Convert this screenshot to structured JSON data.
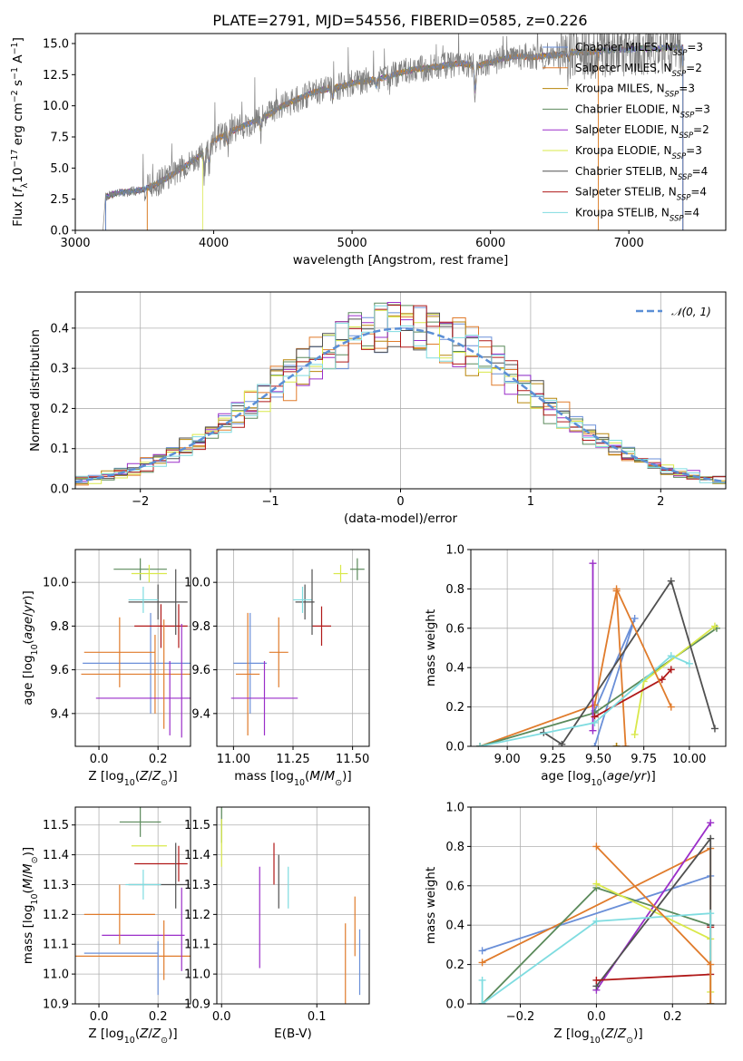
{
  "figure_title": "PLATE=2791, MJD=54556, FIBERID=0585, z=0.226",
  "series_names": [
    "Chabrier MILES, N$_{SSP}$=3",
    "Salpeter MILES, N$_{SSP}$=2",
    "Kroupa MILES, N$_{SSP}$=3",
    "Chabrier ELODIE, N$_{SSP}$=3",
    "Salpeter ELODIE, N$_{SSP}$=2",
    "Kroupa ELODIE, N$_{SSP}$=3",
    "Chabrier STELIB, N$_{SSP}$=4",
    "Salpeter STELIB, N$_{SSP}$=4",
    "Kroupa STELIB, N$_{SSP}$=4"
  ],
  "series_labels": [
    {
      "base": "Chabrier MILES, N",
      "sub": "SSP",
      "tail": "=3"
    },
    {
      "base": "Salpeter MILES, N",
      "sub": "SSP",
      "tail": "=2"
    },
    {
      "base": "Kroupa MILES, N",
      "sub": "SSP",
      "tail": "=3"
    },
    {
      "base": "Chabrier ELODIE, N",
      "sub": "SSP",
      "tail": "=3"
    },
    {
      "base": "Salpeter ELODIE, N",
      "sub": "SSP",
      "tail": "=2"
    },
    {
      "base": "Kroupa ELODIE, N",
      "sub": "SSP",
      "tail": "=3"
    },
    {
      "base": "Chabrier STELIB, N",
      "sub": "SSP",
      "tail": "=4"
    },
    {
      "base": "Salpeter STELIB, N",
      "sub": "SSP",
      "tail": "=4"
    },
    {
      "base": "Kroupa STELIB, N",
      "sub": "SSP",
      "tail": "=4"
    }
  ],
  "series_colors": [
    "#6a8fd8",
    "#e07b2b",
    "#b8860b",
    "#5b8a5b",
    "#9b2fc9",
    "#d9e84a",
    "#505050",
    "#b01818",
    "#7fdce0"
  ],
  "observed_color": "#808080",
  "chart_data": [
    {
      "type": "line",
      "xlabel": "wavelength [Angstrom, rest frame]",
      "ylabel": "Flux [f_λ 10^-17 erg cm^-2 s^-1 A^-1]",
      "xlim": [
        3000,
        7700
      ],
      "ylim": [
        0,
        15.8
      ],
      "xticks": [
        3000,
        4000,
        5000,
        6000,
        7000
      ],
      "yticks": [
        0.0,
        2.5,
        5.0,
        7.5,
        10.0,
        12.5,
        15.0
      ],
      "grid": false,
      "legend": "top-right",
      "observed": {
        "x": [
          3200,
          3220,
          3300,
          3400,
          3500,
          3600,
          3700,
          3800,
          3900,
          4000,
          4100,
          4200,
          4300,
          4400,
          4500,
          4600,
          4700,
          4800,
          4900,
          5000,
          5100,
          5200,
          5300,
          5400,
          5500,
          5600,
          5700,
          5800,
          5900,
          6000,
          6100,
          6200,
          6300,
          6400,
          6500,
          6600,
          6700,
          6800,
          6900,
          7000,
          7100,
          7200,
          7300,
          7400
        ],
        "y": [
          0.0,
          2.7,
          3.0,
          3.1,
          3.3,
          3.8,
          4.5,
          5.2,
          6.0,
          7.2,
          7.8,
          8.3,
          8.8,
          9.3,
          10.0,
          10.5,
          11.0,
          11.3,
          11.5,
          11.8,
          12.0,
          12.2,
          12.5,
          12.8,
          13.0,
          13.1,
          13.3,
          13.4,
          13.2,
          13.5,
          13.8,
          14.0,
          13.9,
          14.0,
          14.1,
          14.3,
          14.3,
          14.4,
          14.5,
          14.5,
          14.6,
          14.6,
          14.7,
          14.7
        ]
      },
      "model_start": [
        3220,
        3520,
        3520,
        3220,
        3220,
        3920,
        3220,
        3220,
        3220
      ],
      "model_end": [
        7390,
        6780,
        6780,
        7390,
        7390,
        7390,
        7390,
        7390,
        7390
      ]
    },
    {
      "type": "histogram",
      "xlabel": "(data-model)/error",
      "ylabel": "Normed distribution",
      "xlim": [
        -2.5,
        2.5
      ],
      "ylim": [
        0,
        0.49
      ],
      "xticks": [
        -2,
        -1,
        0,
        1,
        2
      ],
      "yticks": [
        0.0,
        0.1,
        0.2,
        0.3,
        0.4
      ],
      "grid": true,
      "legend": "top-right",
      "reference": {
        "name": "N(0, 1)",
        "name_parts": [
          "𝒩(0, 1)"
        ],
        "mean": 0,
        "sigma": 1
      },
      "bins": {
        "start": -2.5,
        "width": 0.1,
        "count": 50
      }
    },
    {
      "type": "scatter",
      "xlabel": "Z [log10(Z/Z☉)]",
      "ylabel": "age [log10(age/yr)]",
      "xlim": [
        -0.08,
        0.31
      ],
      "ylim": [
        9.25,
        10.15
      ],
      "xticks": [
        0.0,
        0.2
      ],
      "yticks": [
        9.4,
        9.6,
        9.8,
        10.0
      ],
      "grid": true,
      "points": [
        {
          "x": 0.175,
          "y": 9.63,
          "xerr": 0.23,
          "yerr": 0.23
        },
        {
          "x": 0.19,
          "y": 9.58,
          "xerr": 0.25,
          "yerr": 0.18
        },
        {
          "x": 0.15,
          "y": 10.0,
          "xerr": 0.0,
          "yerr": 0.0
        },
        {
          "x": 0.14,
          "y": 10.06,
          "xerr": 0.09,
          "yerr": 0.05
        },
        {
          "x": 0.24,
          "y": 9.47,
          "xerr": 0.25,
          "yerr": 0.17
        },
        {
          "x": 0.17,
          "y": 10.04,
          "xerr": 0.06,
          "yerr": 0.04
        },
        {
          "x": 0.2,
          "y": 9.91,
          "xerr": 0.1,
          "yerr": 0.08
        },
        {
          "x": 0.21,
          "y": 9.8,
          "xerr": 0.09,
          "yerr": 0.1
        },
        {
          "x": 0.15,
          "y": 9.92,
          "xerr": 0.05,
          "yerr": 0.06
        }
      ],
      "extra_points": [
        {
          "color_index": 1,
          "x": 0.22,
          "y": 9.58,
          "yerr": 0.25
        },
        {
          "color_index": 1,
          "x": 0.07,
          "y": 9.68,
          "xerr": 0.12,
          "yerr": 0.16
        },
        {
          "color_index": 6,
          "x": 0.26,
          "y": 9.91,
          "yerr": 0.15
        },
        {
          "color_index": 4,
          "x": 0.28,
          "y": 9.55,
          "yerr": 0.26
        },
        {
          "color_index": 7,
          "x": 0.27,
          "y": 9.8,
          "yerr": 0.1
        }
      ]
    },
    {
      "type": "scatter",
      "xlabel": "mass [log10(M/M☉)]",
      "ylabel": "",
      "xlim": [
        10.93,
        11.57
      ],
      "ylim": [
        9.25,
        10.15
      ],
      "xticks": [
        11.0,
        11.25,
        11.5
      ],
      "yticks": [
        9.4,
        9.6,
        9.8,
        10.0
      ],
      "grid": true,
      "points": [
        {
          "x": 11.07,
          "y": 9.63,
          "xerr": 0.07,
          "yerr": 0.23
        },
        {
          "x": 11.06,
          "y": 9.58,
          "xerr": 0.05,
          "yerr": 0.28
        },
        {
          "x": 11.43,
          "y": 10.0,
          "xerr": 0.0,
          "yerr": 0.0
        },
        {
          "x": 11.52,
          "y": 10.06,
          "xerr": 0.03,
          "yerr": 0.05
        },
        {
          "x": 11.13,
          "y": 9.47,
          "xerr": 0.14,
          "yerr": 0.17
        },
        {
          "x": 11.45,
          "y": 10.04,
          "xerr": 0.03,
          "yerr": 0.04
        },
        {
          "x": 11.3,
          "y": 9.91,
          "xerr": 0.04,
          "yerr": 0.08
        },
        {
          "x": 11.37,
          "y": 9.8,
          "xerr": 0.04,
          "yerr": 0.09
        },
        {
          "x": 11.29,
          "y": 9.92,
          "xerr": 0.04,
          "yerr": 0.06
        }
      ],
      "extra_points": [
        {
          "color_index": 1,
          "x": 11.19,
          "y": 9.68,
          "xerr": 0.04,
          "yerr": 0.16
        },
        {
          "color_index": 6,
          "x": 11.33,
          "y": 9.91,
          "yerr": 0.15
        }
      ]
    },
    {
      "type": "line",
      "xlabel": "age [log10(age/yr)]",
      "ylabel": "mass weight",
      "xlim": [
        8.8,
        10.2
      ],
      "ylim": [
        0,
        1.0
      ],
      "xticks": [
        9.0,
        9.25,
        9.5,
        9.75,
        10.0
      ],
      "yticks": [
        0.0,
        0.2,
        0.4,
        0.6,
        0.8,
        1.0
      ],
      "grid": true,
      "series": [
        {
          "x": [
            9.48,
            9.7,
            9.48
          ],
          "y": [
            0.18,
            0.65,
            0.0
          ]
        },
        {
          "x": [
            8.85,
            9.48,
            9.6,
            9.65
          ],
          "y": [
            0.0,
            0.21,
            0.79,
            0.0
          ]
        },
        {
          "x": [
            9.6,
            9.6
          ],
          "y": [
            0.0,
            0.0
          ]
        },
        {
          "x": [
            8.85,
            9.48,
            10.15
          ],
          "y": [
            0.0,
            0.17,
            0.6
          ]
        },
        {
          "x": [
            9.47,
            9.47
          ],
          "y": [
            0.08,
            0.93
          ]
        },
        {
          "x": [
            9.7,
            9.75,
            10.14
          ],
          "y": [
            0.06,
            0.33,
            0.61
          ]
        },
        {
          "x": [
            9.2,
            9.3,
            9.9,
            10.14
          ],
          "y": [
            0.07,
            0.01,
            0.84,
            0.09
          ]
        },
        {
          "x": [
            9.48,
            9.85,
            9.9
          ],
          "y": [
            0.15,
            0.34,
            0.39
          ]
        },
        {
          "x": [
            8.85,
            9.48,
            9.9,
            10.0
          ],
          "y": [
            0.0,
            0.12,
            0.46,
            0.42
          ]
        }
      ],
      "extra_series": [
        {
          "color_index": 1,
          "x": [
            9.6,
            9.9
          ],
          "y": [
            0.8,
            0.2
          ]
        }
      ]
    },
    {
      "type": "scatter",
      "xlabel": "Z [log10(Z/Z☉)]",
      "ylabel": "mass [log10(M/M☉)]",
      "xlim": [
        -0.08,
        0.31
      ],
      "ylim": [
        10.9,
        11.56
      ],
      "xticks": [
        0.0,
        0.2
      ],
      "yticks": [
        10.9,
        11.0,
        11.1,
        11.2,
        11.3,
        11.4,
        11.5
      ],
      "grid": true,
      "points": [
        {
          "x": 0.075,
          "y": 11.07,
          "xerr": 0.125,
          "yerr": 0.0
        },
        {
          "x": 0.1,
          "y": 11.06,
          "xerr": 0.25,
          "yerr": 0.0
        },
        {
          "x": 0.15,
          "y": 11.43,
          "xerr": 0.0,
          "yerr": 0.0
        },
        {
          "x": 0.14,
          "y": 11.51,
          "xerr": 0.07,
          "yerr": 0.05
        },
        {
          "x": 0.15,
          "y": 11.13,
          "xerr": 0.14,
          "yerr": 0.0
        },
        {
          "x": 0.17,
          "y": 11.43,
          "xerr": 0.06,
          "yerr": 0.0
        },
        {
          "x": 0.2,
          "y": 11.3,
          "xerr": 0.1,
          "yerr": 0.0
        },
        {
          "x": 0.21,
          "y": 11.37,
          "xerr": 0.09,
          "yerr": 0.0
        },
        {
          "x": 0.15,
          "y": 11.3,
          "xerr": 0.06,
          "yerr": 0.05
        }
      ],
      "extra_points": [
        {
          "color_index": 0,
          "x": 0.2,
          "y": 11.02,
          "yerr": 0.09
        },
        {
          "color_index": 1,
          "x": 0.22,
          "y": 11.08,
          "yerr": 0.1
        },
        {
          "color_index": 1,
          "x": 0.07,
          "y": 11.2,
          "xerr": 0.12,
          "yerr": 0.1
        },
        {
          "color_index": 6,
          "x": 0.26,
          "y": 11.33,
          "yerr": 0.11
        },
        {
          "color_index": 4,
          "x": 0.28,
          "y": 11.15,
          "yerr": 0.14
        },
        {
          "color_index": 7,
          "x": 0.27,
          "y": 11.37,
          "yerr": 0.06
        }
      ]
    },
    {
      "type": "scatter",
      "xlabel": "E(B-V)",
      "ylabel": "",
      "xlim": [
        -0.005,
        0.155
      ],
      "ylim": [
        10.9,
        11.56
      ],
      "xticks": [
        0.0,
        0.1
      ],
      "yticks": [
        10.9,
        11.0,
        11.1,
        11.2,
        11.3,
        11.4,
        11.5
      ],
      "grid": true,
      "points": [
        {
          "x": 0.145,
          "y": 11.04,
          "xerr": 0.0,
          "yerr": 0.11
        },
        {
          "x": 0.13,
          "y": 11.03,
          "xerr": 0.0,
          "yerr": 0.14
        },
        {
          "x": 0.0,
          "y": 11.45,
          "xerr": 0.0,
          "yerr": 0.0
        },
        {
          "x": 0.0,
          "y": 11.5,
          "xerr": 0.0,
          "yerr": 0.06
        },
        {
          "x": 0.04,
          "y": 11.19,
          "xerr": 0.0,
          "yerr": 0.17
        },
        {
          "x": 0.0,
          "y": 11.44,
          "xerr": 0.0,
          "yerr": 0.08
        },
        {
          "x": 0.06,
          "y": 11.31,
          "xerr": 0.0,
          "yerr": 0.09
        },
        {
          "x": 0.055,
          "y": 11.37,
          "xerr": 0.0,
          "yerr": 0.07
        },
        {
          "x": 0.07,
          "y": 11.29,
          "xerr": 0.0,
          "yerr": 0.07
        }
      ],
      "extra_points": [
        {
          "color_index": 1,
          "x": 0.14,
          "y": 11.16,
          "yerr": 0.1
        }
      ]
    },
    {
      "type": "line",
      "xlabel": "Z [log10(Z/Z☉)]",
      "ylabel": "mass weight",
      "xlim": [
        -0.33,
        0.34
      ],
      "ylim": [
        0,
        1.0
      ],
      "xticks": [
        -0.2,
        0.0,
        0.2
      ],
      "yticks": [
        0.0,
        0.2,
        0.4,
        0.6,
        0.8,
        1.0
      ],
      "grid": true,
      "series": [
        {
          "x": [
            -0.3,
            0.3
          ],
          "y": [
            0.27,
            0.65
          ]
        },
        {
          "x": [
            -0.3,
            0.3,
            0.3
          ],
          "y": [
            0.21,
            0.79,
            0.0
          ]
        },
        {
          "x": [
            0.3
          ],
          "y": [
            0.0
          ]
        },
        {
          "x": [
            -0.3,
            0.0,
            0.3
          ],
          "y": [
            0.0,
            0.59,
            0.4
          ]
        },
        {
          "x": [
            0.0,
            0.3
          ],
          "y": [
            0.07,
            0.92
          ]
        },
        {
          "x": [
            0.0,
            0.3,
            0.3
          ],
          "y": [
            0.61,
            0.33,
            0.06
          ]
        },
        {
          "x": [
            0.0,
            0.3,
            0.3
          ],
          "y": [
            0.09,
            0.84,
            0.4
          ]
        },
        {
          "x": [
            0.0,
            0.3,
            0.3
          ],
          "y": [
            0.12,
            0.15,
            0.39
          ]
        },
        {
          "x": [
            -0.3,
            -0.3,
            0.0,
            0.3,
            0.3
          ],
          "y": [
            0.12,
            0.0,
            0.42,
            0.46,
            0.0
          ]
        }
      ],
      "extra_series": [
        {
          "color_index": 1,
          "x": [
            0.0,
            0.3,
            0.3
          ],
          "y": [
            0.8,
            0.2,
            0.0
          ]
        }
      ]
    }
  ]
}
